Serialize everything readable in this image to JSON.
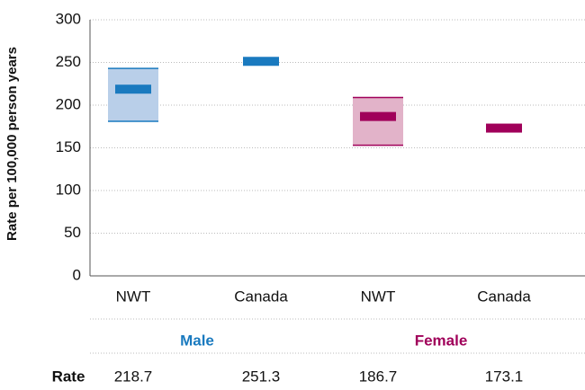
{
  "chart_data": {
    "type": "interval",
    "y_label": "Rate per 100,000 person years",
    "categories": [
      "NWT",
      "Canada",
      "NWT",
      "Canada"
    ],
    "ylim": [
      0,
      300
    ],
    "yticks": [
      0,
      50,
      100,
      150,
      200,
      250,
      300
    ],
    "grid": true,
    "series": [
      {
        "name": "Male",
        "color": "#1a7abf",
        "band_color": "#b9cfe9",
        "values": [
          218.7,
          251.3,
          null,
          null
        ],
        "lower": [
          181,
          null,
          null,
          null
        ],
        "upper": [
          243,
          null,
          null,
          null
        ]
      },
      {
        "name": "Female",
        "color": "#a0005a",
        "band_color": "#e2b3c9",
        "values": [
          null,
          null,
          186.7,
          173.1
        ],
        "lower": [
          null,
          null,
          153,
          null
        ],
        "upper": [
          null,
          null,
          209,
          null
        ]
      }
    ],
    "table_row_label": "Rate"
  }
}
